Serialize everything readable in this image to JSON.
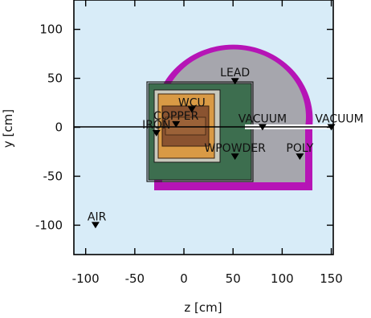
{
  "axes": {
    "xlabel": "z [cm]",
    "ylabel": "y [cm]",
    "x_ticks": [
      {
        "label": "-100",
        "value": -100
      },
      {
        "label": "-50",
        "value": -50
      },
      {
        "label": "0",
        "value": 0
      },
      {
        "label": "50",
        "value": 50
      },
      {
        "label": "100",
        "value": 100
      },
      {
        "label": "150",
        "value": 150
      }
    ],
    "y_ticks": [
      {
        "label": "100",
        "value": 100
      },
      {
        "label": "50",
        "value": 50
      },
      {
        "label": "0",
        "value": 0
      },
      {
        "label": "-50",
        "value": -50
      },
      {
        "label": "-100",
        "value": -100
      }
    ],
    "x_range": [
      -112,
      152
    ],
    "y_range": [
      -130,
      130
    ]
  },
  "regions": [
    {
      "name": "AIR",
      "z": -90,
      "y": -100,
      "color": "#d8ecf8"
    },
    {
      "name": "LEAD",
      "z": 52,
      "y": 47,
      "color": "#a6a6ad"
    },
    {
      "name": "WCU",
      "z": 8,
      "y": 18,
      "color": "#c9c9bc"
    },
    {
      "name": "COPPER",
      "z": -8,
      "y": 3,
      "color": "#d99a45"
    },
    {
      "name": "IRON",
      "z": -28,
      "y": -6,
      "color": "#8a5330"
    },
    {
      "name": "VACUUM",
      "z": 80,
      "y": 0,
      "color": "#ffffff"
    },
    {
      "name": "VACUUM",
      "z": 150,
      "y": 0,
      "color": "#ffffff"
    },
    {
      "name": "WPOWDER",
      "z": 52,
      "y": -30,
      "color": "#3d6e4f"
    },
    {
      "name": "POLY",
      "z": 118,
      "y": -30,
      "color": "#b614b6"
    }
  ],
  "colors": {
    "background": "#d8ecf8",
    "poly": "#b614b6",
    "lead": "#a6a6ad",
    "wpowder": "#3d6e4f",
    "wcu": "#c9c9bc",
    "copper": "#d99a45",
    "iron": "#8a5330",
    "vacuum": "#ffffff"
  }
}
